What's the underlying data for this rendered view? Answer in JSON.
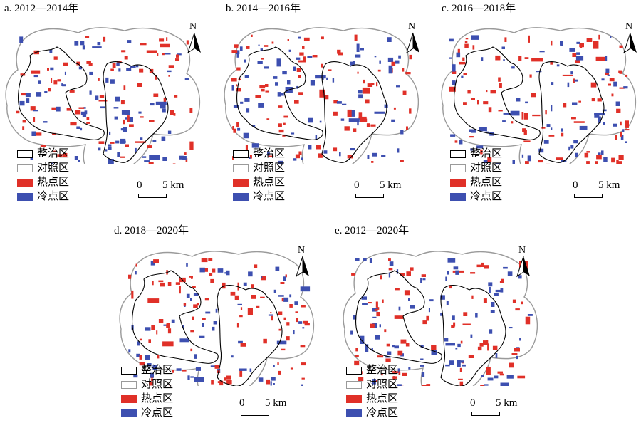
{
  "panels": [
    {
      "title": "a. 2012—2014年"
    },
    {
      "title": "b. 2014—2016年"
    },
    {
      "title": "c. 2016—2018年"
    },
    {
      "title": "d. 2018—2020年"
    },
    {
      "title": "e. 2012—2020年"
    }
  ],
  "legend": {
    "items": [
      {
        "label": "整治区",
        "color": "#ffffff",
        "border": "#000000"
      },
      {
        "label": "对照区",
        "color": "#ffffff",
        "border": "#9a9a9a"
      },
      {
        "label": "热点区",
        "color": "#e03028"
      },
      {
        "label": "冷点区",
        "color": "#3d4fb0"
      }
    ]
  },
  "north_arrow": {
    "label": "N"
  },
  "scale_bar": {
    "zero": "0",
    "end": "5 km"
  },
  "colors": {
    "hot": "#e03028",
    "cold": "#3d4fb0",
    "control_border": "#9a9a9a",
    "treat_border": "#000000"
  }
}
